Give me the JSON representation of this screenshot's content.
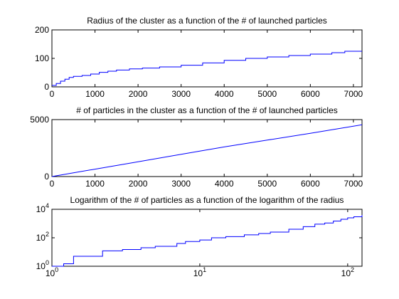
{
  "figure": {
    "background": "#ffffff"
  },
  "chart_data": [
    {
      "type": "line",
      "title": "Radius of the cluster as a function of the # of launched particles",
      "xlabel": "",
      "ylabel": "",
      "xlim": [
        0,
        7200
      ],
      "ylim": [
        0,
        200
      ],
      "xscale": "linear",
      "yscale": "linear",
      "xticks": [
        0,
        1000,
        2000,
        3000,
        4000,
        5000,
        6000,
        7000
      ],
      "xtick_labels": [
        "0",
        "1000",
        "2000",
        "3000",
        "4000",
        "5000",
        "6000",
        "7000"
      ],
      "yticks": [
        0,
        100,
        200
      ],
      "ytick_labels": [
        "0",
        "100",
        "200"
      ],
      "grid": false,
      "legend": "none",
      "series": [
        {
          "color": "#0000ff",
          "step": true,
          "x": [
            0,
            100,
            200,
            300,
            400,
            500,
            700,
            900,
            1100,
            1300,
            1500,
            1800,
            2100,
            2500,
            3000,
            3500,
            4000,
            4500,
            5000,
            5500,
            6000,
            6500,
            6800,
            7200
          ],
          "y": [
            5,
            12,
            20,
            27,
            33,
            37,
            40,
            45,
            51,
            55,
            59,
            63,
            66,
            70,
            76,
            84,
            93,
            100,
            105,
            110,
            115,
            120,
            125,
            125
          ]
        }
      ]
    },
    {
      "type": "line",
      "title": "# of particles in the cluster as a function of the # of launched particles",
      "xlabel": "",
      "ylabel": "",
      "xlim": [
        0,
        7200
      ],
      "ylim": [
        0,
        5000
      ],
      "xscale": "linear",
      "yscale": "linear",
      "xticks": [
        0,
        1000,
        2000,
        3000,
        4000,
        5000,
        6000,
        7000
      ],
      "xtick_labels": [
        "0",
        "1000",
        "2000",
        "3000",
        "4000",
        "5000",
        "6000",
        "7000"
      ],
      "yticks": [
        0,
        5000
      ],
      "ytick_labels": [
        "0",
        "5000"
      ],
      "grid": false,
      "legend": "none",
      "series": [
        {
          "color": "#0000ff",
          "step": false,
          "x": [
            0,
            500,
            1000,
            2000,
            3000,
            4000,
            5000,
            6000,
            7200
          ],
          "y": [
            0,
            330,
            650,
            1300,
            1950,
            2600,
            3200,
            3800,
            4550
          ]
        }
      ]
    },
    {
      "type": "line",
      "title": "Logarithm of the # of particles as a function of the logarithm of the radius",
      "xlabel": "",
      "ylabel": "",
      "xlim": [
        1,
        125
      ],
      "ylim": [
        1,
        10000
      ],
      "xscale": "log",
      "yscale": "log",
      "xticks": [
        1,
        10,
        100
      ],
      "xtick_labels": [
        "10^0",
        "10^1",
        "10^2"
      ],
      "yticks": [
        1,
        100,
        10000
      ],
      "ytick_labels": [
        "10^0",
        "10^2",
        "10^4"
      ],
      "grid": false,
      "legend": "none",
      "series": [
        {
          "color": "#0000ff",
          "step": true,
          "x": [
            1,
            1.2,
            1.4,
            2.2,
            3,
            4,
            5,
            7,
            8,
            10,
            12,
            15,
            20,
            25,
            30,
            40,
            50,
            60,
            70,
            80,
            90,
            100,
            110,
            125
          ],
          "y": [
            1,
            1.5,
            5,
            12,
            15,
            20,
            25,
            40,
            55,
            70,
            100,
            120,
            160,
            200,
            250,
            400,
            600,
            900,
            1100,
            1500,
            2000,
            2500,
            3000,
            4000
          ]
        }
      ]
    }
  ]
}
